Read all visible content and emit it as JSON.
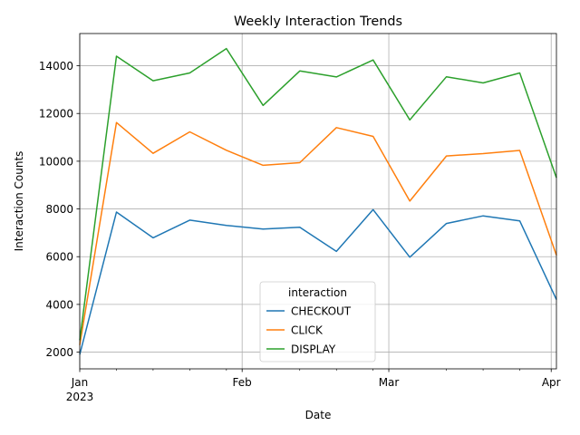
{
  "chart_data": {
    "type": "line",
    "title": "Weekly Interaction Trends",
    "xlabel": "Date",
    "ylabel": "Interaction Counts",
    "x": [
      "2023-01-01",
      "2023-01-08",
      "2023-01-15",
      "2023-01-22",
      "2023-01-29",
      "2023-02-05",
      "2023-02-12",
      "2023-02-19",
      "2023-02-26",
      "2023-03-05",
      "2023-03-12",
      "2023-03-19",
      "2023-03-26",
      "2023-04-02"
    ],
    "xlim": [
      "2023-01-01",
      "2023-04-02"
    ],
    "ylim": [
      1300,
      15350
    ],
    "x_major_ticks": [
      {
        "date": "2023-01-01",
        "label": "Jan",
        "sublabel": "2023"
      },
      {
        "date": "2023-02-01",
        "label": "Feb",
        "sublabel": ""
      },
      {
        "date": "2023-03-01",
        "label": "Mar",
        "sublabel": ""
      },
      {
        "date": "2023-04-01",
        "label": "Apr",
        "sublabel": ""
      }
    ],
    "x_minor_ticks": [
      "2023-01-08",
      "2023-01-15",
      "2023-01-22",
      "2023-01-29",
      "2023-02-12",
      "2023-02-19",
      "2023-02-26",
      "2023-03-12",
      "2023-03-19",
      "2023-03-26"
    ],
    "y_ticks": [
      2000,
      4000,
      6000,
      8000,
      10000,
      12000,
      14000
    ],
    "y_tick_labels": [
      "2000",
      "4000",
      "6000",
      "8000",
      "10000",
      "12000",
      "14000"
    ],
    "grid": true,
    "legend": {
      "title": "interaction",
      "placement": "lower-center"
    },
    "series": [
      {
        "name": "CHECKOUT",
        "color": "#1f77b4",
        "values": [
          1900,
          7870,
          6790,
          7530,
          7310,
          7160,
          7230,
          6220,
          7970,
          5980,
          7390,
          7710,
          7500,
          4200
        ]
      },
      {
        "name": "CLICK",
        "color": "#ff7f0e",
        "values": [
          2300,
          11620,
          10330,
          11230,
          10460,
          9830,
          9940,
          11410,
          11040,
          8330,
          10220,
          10320,
          10450,
          6060
        ]
      },
      {
        "name": "DISPLAY",
        "color": "#2ca02c",
        "values": [
          2500,
          14400,
          13370,
          13700,
          14720,
          12340,
          13780,
          13530,
          14240,
          11730,
          13540,
          13280,
          13700,
          9310
        ]
      }
    ]
  }
}
